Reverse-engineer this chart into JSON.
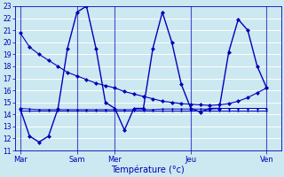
{
  "background_color": "#cce8f0",
  "grid_color": "#ffffff",
  "line_color": "#0000bb",
  "xlabel": "Température (°c)",
  "xlabel_color": "#0000bb",
  "ylim": [
    11,
    23
  ],
  "yticks": [
    11,
    12,
    13,
    14,
    15,
    16,
    17,
    18,
    19,
    20,
    21,
    22,
    23
  ],
  "xtick_labels": [
    "Mar",
    "Sam",
    "Mer",
    "Jeu",
    "Ven"
  ],
  "xtick_positions": [
    0,
    6,
    10,
    18,
    26
  ],
  "xlim": [
    -0.5,
    27.5
  ],
  "num_points": 27,
  "series_declining": [
    20.8,
    19.6,
    19.0,
    18.5,
    18.0,
    17.5,
    17.2,
    16.9,
    16.6,
    16.4,
    16.2,
    15.9,
    15.7,
    15.5,
    15.3,
    15.1,
    15.0,
    14.9,
    14.85,
    14.8,
    14.75,
    14.8,
    14.9,
    15.1,
    15.4,
    15.8,
    16.2
  ],
  "series_jagged": [
    14.5,
    12.2,
    11.7,
    12.2,
    14.5,
    19.5,
    22.5,
    23.0,
    19.5,
    15.0,
    14.5,
    12.7,
    14.5,
    14.5,
    19.5,
    22.5,
    20.0,
    16.5,
    14.5,
    14.2,
    14.5,
    14.5,
    19.2,
    21.9,
    21.0,
    18.0,
    16.2
  ],
  "series_flat1": [
    14.5,
    14.45,
    14.4,
    14.4,
    14.4,
    14.4,
    14.4,
    14.4,
    14.4,
    14.4,
    14.4,
    14.4,
    14.4,
    14.4,
    14.4,
    14.45,
    14.45,
    14.45,
    14.45,
    14.45,
    14.45,
    14.5,
    14.5,
    14.5,
    14.5,
    14.5,
    14.5
  ],
  "series_flat2": [
    14.3,
    14.3,
    14.3,
    14.3,
    14.3,
    14.3,
    14.3,
    14.3,
    14.3,
    14.3,
    14.3,
    14.3,
    14.3,
    14.3,
    14.3,
    14.3,
    14.3,
    14.3,
    14.3,
    14.3,
    14.3,
    14.3,
    14.3,
    14.3,
    14.3,
    14.3,
    14.3
  ]
}
